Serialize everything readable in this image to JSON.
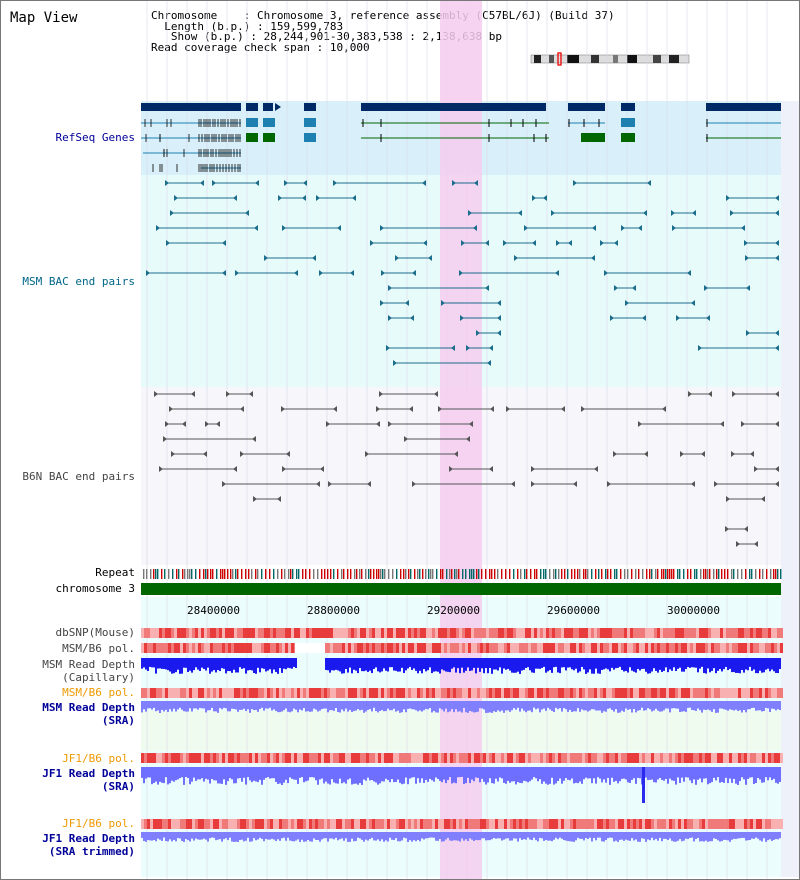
{
  "app": {
    "title": "Map View"
  },
  "info": {
    "chromosome_label": "Chromosome",
    "chromosome_value": "Chromosome 3, reference assembly (C57BL/6J) (Build 37)",
    "length_label": "Length (b.p.)",
    "length_value": "159,599,783",
    "show_label": "Show (b.p.)",
    "show_value": "28,244,901-30,383,538 : 2,138,638 bp",
    "coverage_label": "Read coverage check span",
    "coverage_value": "10,000"
  },
  "tracks": {
    "refseq": "RefSeq Genes",
    "msm_bac": "MSM BAC end pairs",
    "b6n_bac": "B6N BAC end pairs",
    "repeat": "Repeat",
    "chromosome": "chromosome 3",
    "dbsnp": "dbSNP(Mouse)",
    "msm_pol": "MSM/B6 pol.",
    "msm_read_depth_cap_1": "MSM Read Depth",
    "msm_read_depth_cap_2": "(Capillary)",
    "msm_pol_2": "MSM/B6 pol.",
    "msm_read_depth_sra_1": "MSM Read Depth",
    "msm_read_depth_sra_2": "(SRA)",
    "jf1_pol": "JF1/B6 pol.",
    "jf1_read_depth_sra_1": "JF1 Read Depth",
    "jf1_read_depth_sra_2": "(SRA)",
    "jf1_pol_2": "JF1/B6 pol.",
    "jf1_read_depth_trim_1": "JF1 Read Depth",
    "jf1_read_depth_trim_2": "(SRA trimmed)"
  },
  "axis": {
    "ticks": [
      "28400000",
      "28800000",
      "29200000",
      "29600000",
      "30000000"
    ]
  },
  "colors": {
    "refseq_bg": "#d9f0fa",
    "bac_bg": "#e8fbfb",
    "b6n_bg": "#f6f6fb",
    "highlight": "#f5cdee",
    "gene_dark": "#002a66",
    "gene_mid": "#1d80b0",
    "gene_green": "#006600",
    "msm_line": "#1b6d8c",
    "b6n_line": "#555555",
    "depth_blue": "#1a1aee",
    "depth_light": "#8080ff",
    "chrom_green": "#006600",
    "label_blue": "#000099",
    "label_teal": "#006688",
    "label_orange": "#ee9900"
  }
}
